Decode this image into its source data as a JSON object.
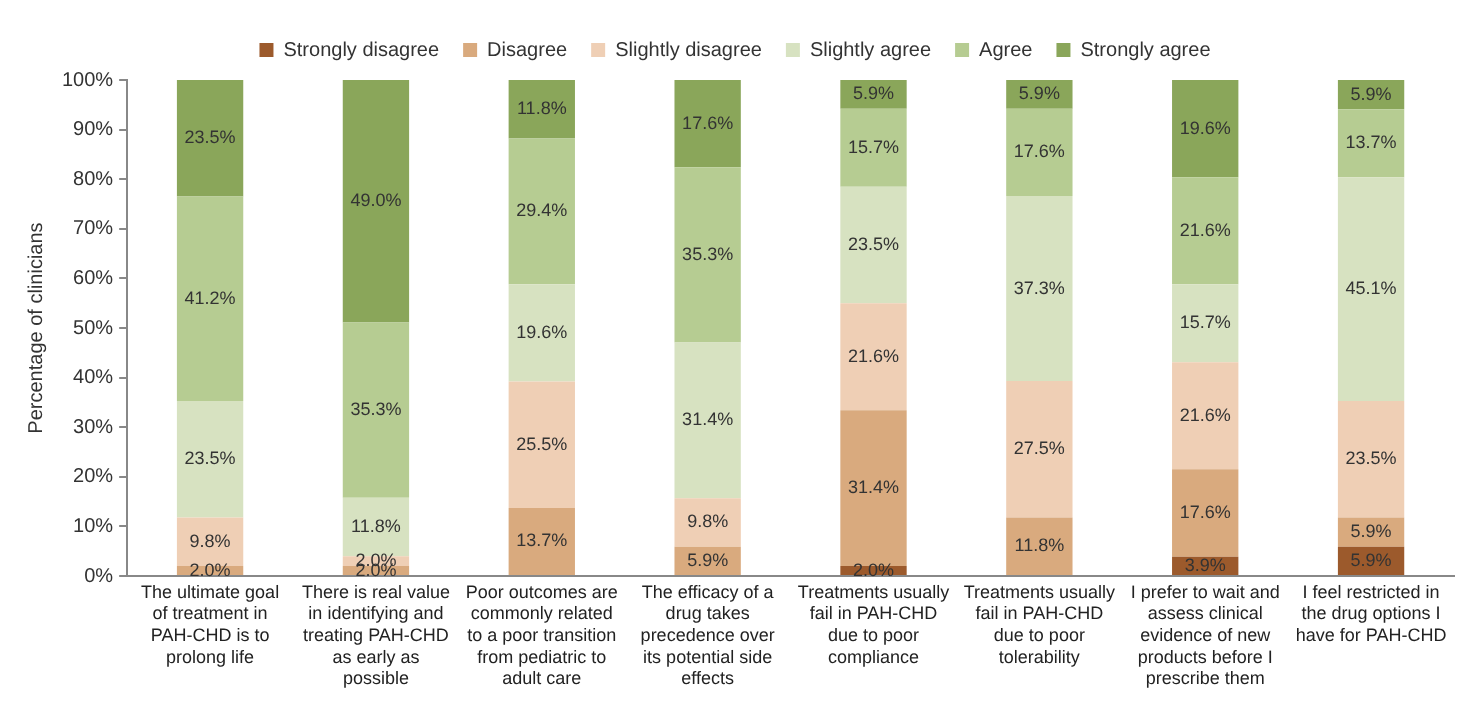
{
  "chart_data": {
    "type": "bar",
    "stacked": true,
    "ylabel": "Percentage of clinicians",
    "legend": "top",
    "grid": false,
    "categories": [
      "The ultimate goal of treatment in PAH-CHD is to prolong life",
      "There is real value in identifying and treating PAH-CHD as early as possible",
      "Poor outcomes are commonly related to a poor transition from pediatric to adult care",
      "The efficacy of a drug takes precedence over its potential side effects",
      "Treatments usually fail in PAH-CHD due to poor compliance",
      "Treatments usually fail in PAH-CHD due to poor tolerability",
      "I prefer to wait and assess clinical evidence of new products before I prescribe them",
      "I feel restricted in the drug options I have for PAH-CHD"
    ],
    "ylim": [
      0,
      100
    ],
    "yticks": [
      {
        "value": 0,
        "label": "0%"
      },
      {
        "value": 10,
        "label": "10%"
      },
      {
        "value": 20,
        "label": "20%"
      },
      {
        "value": 30,
        "label": "30%"
      },
      {
        "value": 40,
        "label": "40%"
      },
      {
        "value": 50,
        "label": "50%"
      },
      {
        "value": 60,
        "label": "60%"
      },
      {
        "value": 70,
        "label": "70%"
      },
      {
        "value": 80,
        "label": "80%"
      },
      {
        "value": 90,
        "label": "90%"
      },
      {
        "value": 100,
        "label": "100%"
      }
    ],
    "series": [
      {
        "name": "Strongly disagree",
        "color": "#9c5a2c",
        "values": [
          null,
          null,
          null,
          null,
          2.0,
          null,
          3.9,
          5.9
        ],
        "value_labels": [
          null,
          null,
          null,
          null,
          "2.0%",
          null,
          "3.9%",
          "5.9%"
        ]
      },
      {
        "name": "Disagree",
        "color": "#d9aa7e",
        "values": [
          2.0,
          2.0,
          13.7,
          5.9,
          31.4,
          11.8,
          17.6,
          5.9
        ],
        "value_labels": [
          "2.0%",
          "2.0%",
          "13.7%",
          "5.9%",
          "31.4%",
          "11.8%",
          "17.6%",
          "5.9%"
        ]
      },
      {
        "name": "Slightly disagree",
        "color": "#efcfb5",
        "values": [
          9.8,
          2.0,
          25.5,
          9.8,
          21.6,
          27.5,
          21.6,
          23.5
        ],
        "value_labels": [
          "9.8%",
          "2.0%",
          "25.5%",
          "9.8%",
          "21.6%",
          "27.5%",
          "21.6%",
          "23.5%"
        ]
      },
      {
        "name": "Slightly agree",
        "color": "#d7e2c1",
        "values": [
          23.5,
          11.8,
          19.6,
          31.4,
          23.5,
          37.3,
          15.7,
          45.1
        ],
        "value_labels": [
          "23.5%",
          "11.8%",
          "19.6%",
          "31.4%",
          "23.5%",
          "37.3%",
          "15.7%",
          "45.1%"
        ]
      },
      {
        "name": "Agree",
        "color": "#b6cc92",
        "values": [
          41.2,
          35.3,
          29.4,
          35.3,
          15.7,
          17.6,
          21.6,
          13.7
        ],
        "value_labels": [
          "41.2%",
          "35.3%",
          "29.4%",
          "35.3%",
          "15.7%",
          "17.6%",
          "21.6%",
          "13.7%"
        ]
      },
      {
        "name": "Strongly agree",
        "color": "#8aa65a",
        "values": [
          23.5,
          49.0,
          11.8,
          17.6,
          5.9,
          5.9,
          19.6,
          5.9
        ],
        "value_labels": [
          "23.5%",
          "49.0%",
          "11.8%",
          "17.6%",
          "5.9%",
          "5.9%",
          "19.6%",
          "5.9%"
        ]
      }
    ]
  }
}
